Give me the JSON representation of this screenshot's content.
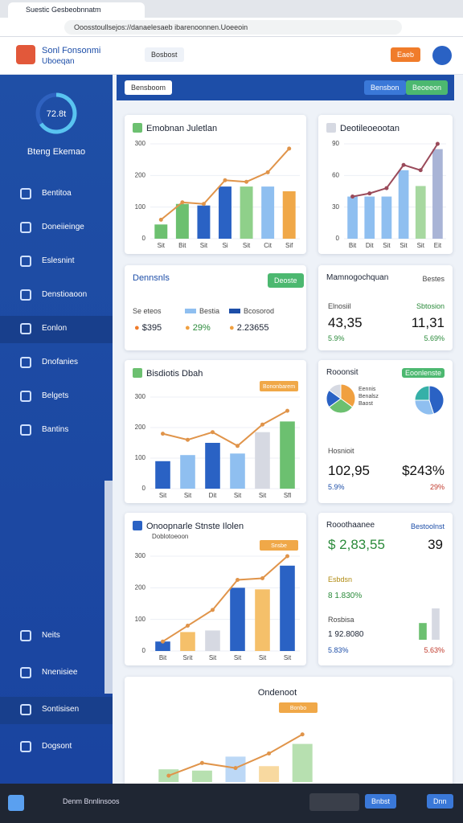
{
  "browser": {
    "tab_title": "Suestic Gesbeobnnatm",
    "url": "Ooosstoullsejos://danaelesaeb ibarenoonnen.Uoeeoin"
  },
  "header": {
    "app_title": "Sonl Fonsonmi",
    "app_subtitle": "Uboeqan",
    "nav_tab": "Bosbost",
    "button": "Eaeb"
  },
  "sidebar": {
    "gauge_label": "72.8t",
    "user_name": "Bteng Ekemao",
    "items": [
      "Bentitoa",
      "Doneiieinge",
      "Eslesnint",
      "Denstioaoon",
      "Eonlon",
      "Dnofanies",
      "Belgets",
      "Bantins"
    ],
    "bottom_items": [
      "Neits",
      "Nnenisiee",
      "Sontisisen",
      "Dogsont"
    ]
  },
  "toolbar": {
    "left_button": "Bensboom",
    "right_buttons": [
      "Bensbon",
      "Beoeeon"
    ]
  },
  "stat_card_1": {
    "title": "Dennsnls",
    "button": "Deoste",
    "row_label": "Se eteos",
    "legend": [
      "Bestia",
      "Bcosorod"
    ],
    "values": [
      "$395",
      "29%",
      "2.23655"
    ]
  },
  "stat_card_2": {
    "title": "Mamnogochquan",
    "corner": "Bestes",
    "labels": [
      "Elnosiil",
      "Sbtosion"
    ],
    "values": [
      "43,35",
      "11,31"
    ],
    "changes": [
      "5.9%",
      "5.69%"
    ]
  },
  "pie_card": {
    "title": "Rooonsit",
    "badge": "Eoonlenste",
    "legend": [
      "Eennis",
      "Benalsz",
      "Baost"
    ],
    "label": "Hosnioit",
    "values": [
      "102,95",
      "$243%"
    ],
    "changes": [
      "5.9%",
      "29%"
    ]
  },
  "stat_card_3": {
    "title": "Rooothaanee",
    "corner": "Bestoolnst",
    "value": "$ 2,83,55",
    "value2": "39",
    "label1": "Esbdsn",
    "line1": "8 1.830%",
    "label2": "Rosbisa",
    "line2": "1 92.8080",
    "changes": [
      "5.83%",
      "5.63%"
    ]
  },
  "taskbar": {
    "search": "Denm Bnnlinsoos",
    "buttons": [
      "Bnbst",
      "Dnn"
    ]
  },
  "chart_data": [
    {
      "type": "bar",
      "title": "Emobnan Juletlan",
      "categories": [
        "Sit",
        "Bit",
        "Sit",
        "Si",
        "Sit",
        "Cit",
        "Sif"
      ],
      "ylim": [
        0,
        300
      ],
      "yticks": [
        0,
        100,
        200,
        300
      ],
      "series": [
        {
          "type": "bar",
          "colors": [
            "#6cc070",
            "#6cc070",
            "#2a62c4",
            "#2a62c4",
            "#8fd08a",
            "#8fbff0",
            "#f0a848"
          ],
          "values": [
            45,
            110,
            105,
            165,
            165,
            165,
            150
          ]
        },
        {
          "type": "line",
          "color": "#e0944a",
          "values": [
            60,
            115,
            110,
            185,
            180,
            210,
            285
          ]
        }
      ]
    },
    {
      "type": "bar",
      "title": "Deotileoeootan",
      "categories": [
        "Bit",
        "Dit",
        "Sit",
        "Sit",
        "Sit",
        "Eit"
      ],
      "ylim": [
        0,
        90
      ],
      "yticks": [
        0,
        30,
        60,
        90
      ],
      "series": [
        {
          "type": "bar",
          "colors": [
            "#8fbff0",
            "#8fbff0",
            "#8fbff0",
            "#8fbff0",
            "#a7d8a0",
            "#a9b4d6"
          ],
          "values": [
            40,
            40,
            40,
            65,
            50,
            85
          ]
        },
        {
          "type": "line",
          "color": "#9a4a5a",
          "values": [
            40,
            43,
            48,
            70,
            65,
            90
          ]
        }
      ]
    },
    {
      "type": "bar",
      "title": "Bisdiotis Dbah",
      "annotation": "Bononbarem",
      "categories": [
        "Sit",
        "Sit",
        "Dit",
        "Sit",
        "Sit",
        "Sfl"
      ],
      "ylim": [
        0,
        300
      ],
      "yticks": [
        0,
        100,
        200,
        300
      ],
      "series": [
        {
          "type": "bar",
          "colors": [
            "#2a62c4",
            "#8fbff0",
            "#2a62c4",
            "#8fbff0",
            "#d6d9e2",
            "#6cc070"
          ],
          "values": [
            90,
            110,
            150,
            115,
            185,
            220
          ]
        },
        {
          "type": "line",
          "color": "#e0944a",
          "values": [
            180,
            160,
            185,
            140,
            210,
            255
          ]
        }
      ]
    },
    {
      "type": "bar",
      "title": "Onoopnarle Stnste Ilolen",
      "subtitle": "Doblotoeoon",
      "annotation": "Snsbe",
      "categories": [
        "Bit",
        "Srit",
        "Sit",
        "Sit",
        "Sit",
        "Sit"
      ],
      "ylim": [
        0,
        300
      ],
      "yticks": [
        0,
        100,
        200,
        300
      ],
      "series": [
        {
          "type": "bar",
          "colors": [
            "#2a62c4",
            "#f5c06a",
            "#d6d9e2",
            "#2a62c4",
            "#f5c06a",
            "#2a62c4"
          ],
          "values": [
            30,
            60,
            65,
            200,
            195,
            270
          ]
        },
        {
          "type": "line",
          "color": "#e0944a",
          "values": [
            30,
            80,
            130,
            225,
            230,
            300
          ]
        }
      ]
    },
    {
      "type": "bar",
      "title": "Ondenoot",
      "annotation": "Bonbo",
      "ylim": [
        0,
        100
      ],
      "series": [
        {
          "type": "bar",
          "colors": [
            "#b7e0b0",
            "#b7e0b0",
            "#bcd8f6",
            "#f8d9a0",
            "#b7e0b0"
          ],
          "values": [
            20,
            18,
            40,
            25,
            60
          ]
        },
        {
          "type": "line",
          "color": "#e0944a",
          "values": [
            10,
            30,
            22,
            45,
            75
          ]
        }
      ]
    },
    {
      "type": "bar",
      "ylim": [
        0,
        100
      ],
      "series": [
        {
          "type": "bar",
          "colors": [
            "#6cc070",
            "#d6d9e2"
          ],
          "values": [
            40,
            75
          ]
        }
      ]
    },
    {
      "type": "pie",
      "values": [
        35,
        30,
        20,
        15
      ],
      "colors": [
        "#f0a040",
        "#6cc070",
        "#2a62c4",
        "#d6d9e2"
      ]
    },
    {
      "type": "pie",
      "values": [
        45,
        30,
        25
      ],
      "colors": [
        "#2a62c4",
        "#8fbff0",
        "#36b0a8"
      ]
    }
  ]
}
